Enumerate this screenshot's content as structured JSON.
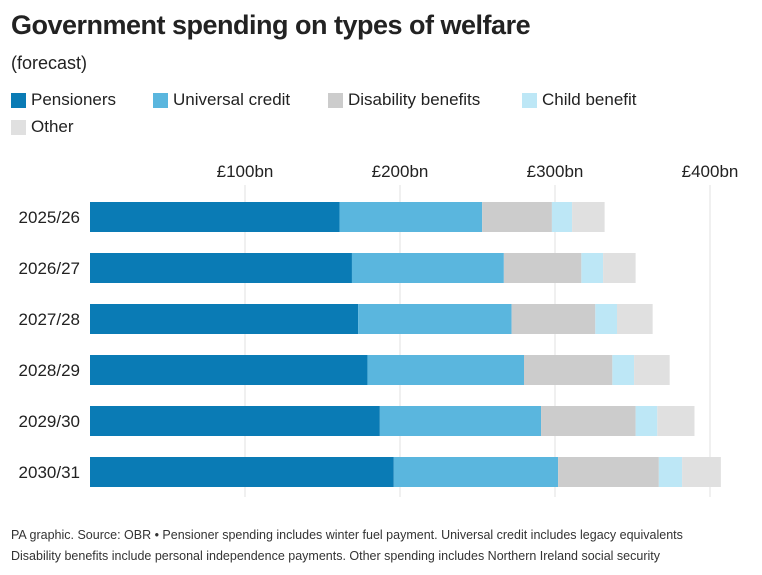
{
  "title": "Government spending on types of welfare",
  "subtitle": "(forecast)",
  "legend": [
    {
      "label": "Pensioners",
      "color": "#0a7bb5"
    },
    {
      "label": "Universal credit",
      "color": "#5ab6de"
    },
    {
      "label": "Disability benefits",
      "color": "#cccccc"
    },
    {
      "label": "Child benefit",
      "color": "#bde7f6"
    },
    {
      "label": "Other",
      "color": "#e0e0e0"
    }
  ],
  "chart_data": {
    "type": "bar",
    "orientation": "horizontal",
    "stacked": true,
    "categories": [
      "2025/26",
      "2026/27",
      "2027/28",
      "2028/29",
      "2029/30",
      "2030/31"
    ],
    "series": [
      {
        "name": "Pensioners",
        "color": "#0a7bb5",
        "values": [
          161,
          169,
          173,
          179,
          187,
          196
        ]
      },
      {
        "name": "Universal credit",
        "color": "#5ab6de",
        "values": [
          92,
          98,
          99,
          101,
          104,
          106
        ]
      },
      {
        "name": "Disability benefits",
        "color": "#cccccc",
        "values": [
          45,
          50,
          54,
          57,
          61,
          65
        ]
      },
      {
        "name": "Child benefit",
        "color": "#bde7f6",
        "values": [
          13,
          14,
          14,
          14,
          14,
          15
        ]
      },
      {
        "name": "Other",
        "color": "#e0e0e0",
        "values": [
          21,
          21,
          23,
          23,
          24,
          25
        ]
      }
    ],
    "xticks": [
      100,
      200,
      300,
      400
    ],
    "xtick_labels": [
      "£100bn",
      "£200bn",
      "£300bn",
      "£400bn"
    ],
    "xlim": [
      0,
      407
    ],
    "axis_position": "top",
    "grid": true
  },
  "footer": {
    "line1": "PA graphic. Source: OBR • Pensioner spending includes winter fuel payment. Universal credit includes legacy equivalents",
    "line2": "Disability benefits include personal independence payments. Other spending includes Northern Ireland social security"
  }
}
